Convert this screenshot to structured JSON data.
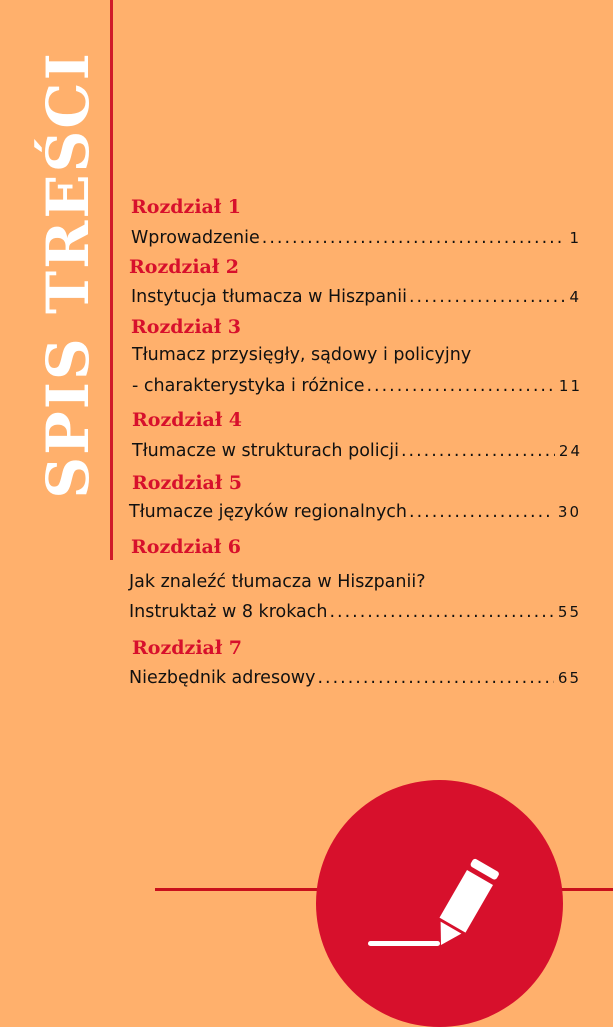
{
  "title": "SPIS TREŚCI",
  "chapters": [
    {
      "heading": "Rozdział 1",
      "lines": [],
      "last": "Wprowadzenie",
      "page": "1"
    },
    {
      "heading": "Rozdział 2",
      "lines": [],
      "last": "Instytucja tłumacza w  Hiszpanii",
      "page": "4"
    },
    {
      "heading": "Rozdział 3",
      "lines": [
        "Tłumacz przysięgły, sądowy i policyjny"
      ],
      "last": " - charakterystyka i różnice",
      "page": "11"
    },
    {
      "heading": "Rozdział 4",
      "lines": [],
      "last": "Tłumacze w strukturach policji",
      "page": "24"
    },
    {
      "heading": "Rozdział 5",
      "lines": [],
      "last": "Tłumacze języków regionalnych",
      "page": "30"
    },
    {
      "heading": "Rozdział 6",
      "lines": [
        "Jak znaleźć tłumacza w Hiszpanii?"
      ],
      "last": "Instruktaż w 8 krokach",
      "page": "55"
    },
    {
      "heading": "Rozdział 7",
      "lines": [],
      "last": "Niezbędnik adresowy",
      "page": "65"
    }
  ],
  "icon": "pencil-icon",
  "colors": {
    "background": "#ffb06c",
    "accent": "#d7102c",
    "title": "#ffffff"
  }
}
